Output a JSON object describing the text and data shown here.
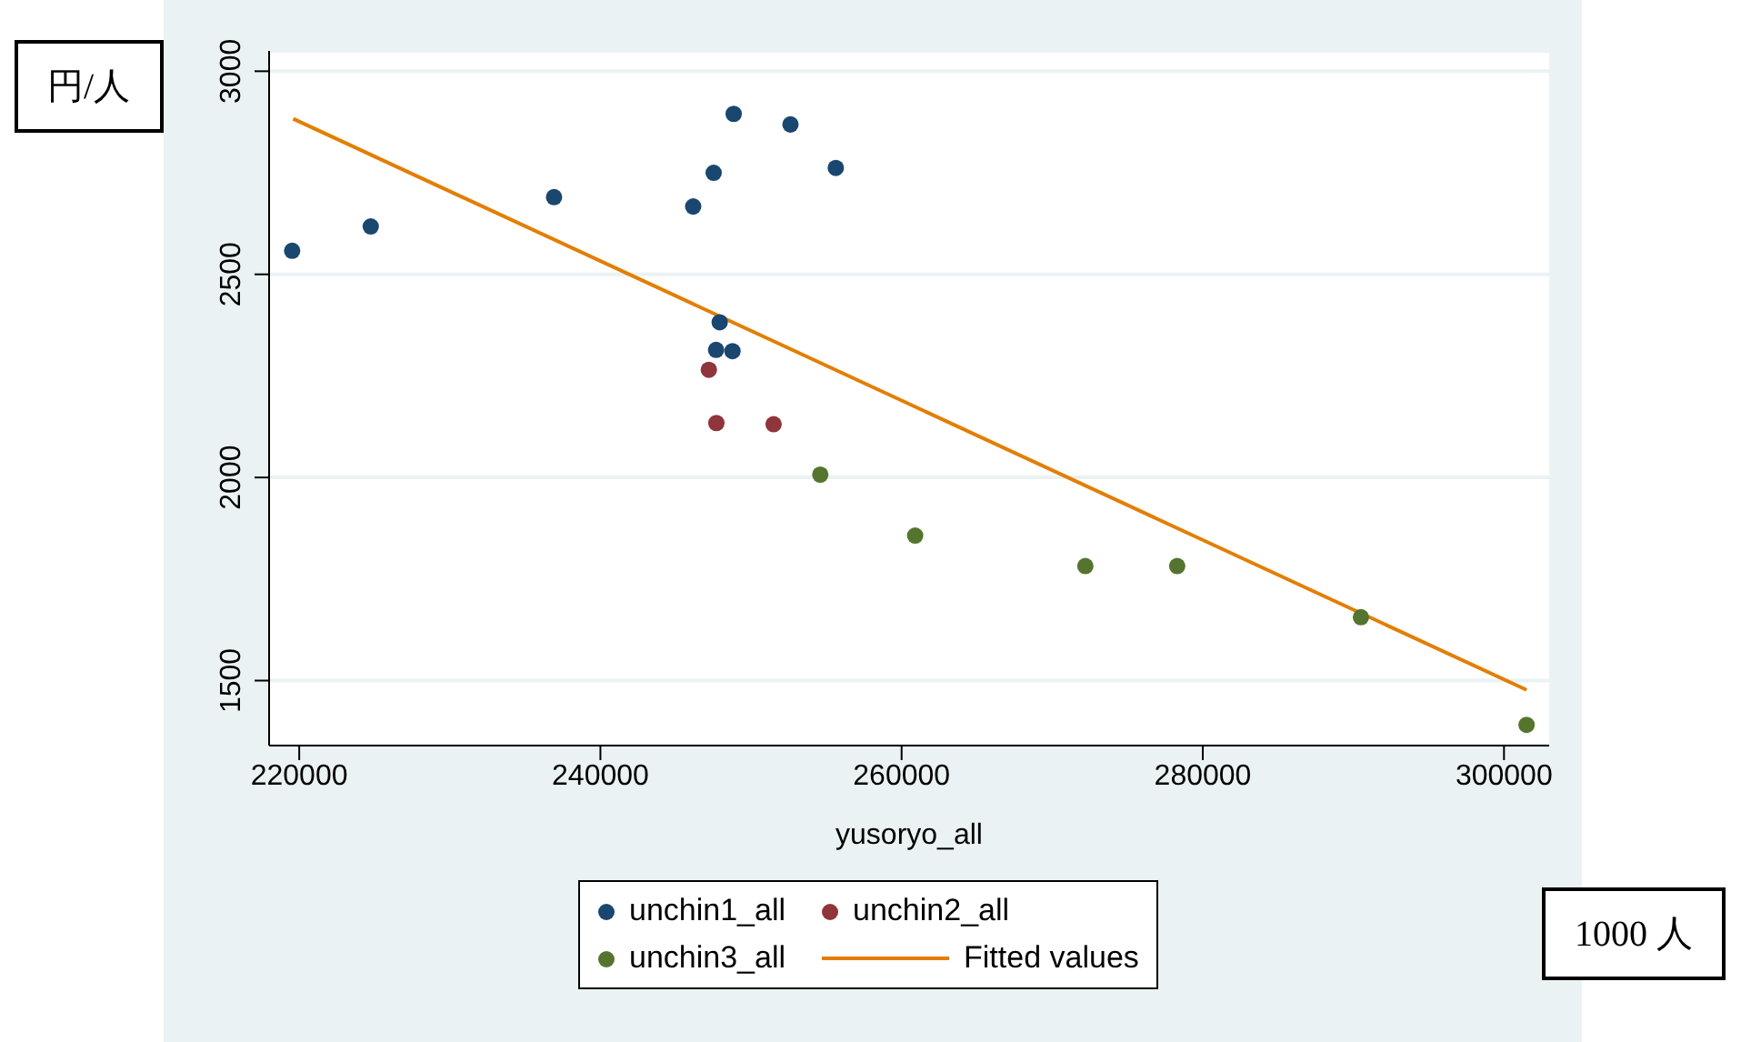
{
  "chart_data": {
    "type": "scatter",
    "xlabel": "yusoryo_all",
    "annotations": [
      "円/人",
      "1000 人"
    ],
    "xlim": [
      218000,
      303000
    ],
    "xticks": [
      220000,
      240000,
      260000,
      280000,
      300000
    ],
    "ylim": [
      1340,
      3050
    ],
    "yticks": [
      1500,
      2000,
      2500,
      3000
    ],
    "grid": "y",
    "legend": "bottom",
    "series": [
      {
        "name": "unchin1_all",
        "color": "#1a476f",
        "marker": "circle",
        "x": [
          219530,
          224750,
          236920,
          246160,
          247520,
          248850,
          252620,
          255630,
          247920,
          247680,
          248770
        ],
        "values": [
          2558,
          2618,
          2690,
          2667,
          2750,
          2895,
          2869,
          2762,
          2382,
          2314,
          2311
        ]
      },
      {
        "name": "unchin2_all",
        "color": "#90353b",
        "marker": "circle",
        "x": [
          247200,
          247700,
          251500
        ],
        "values": [
          2265,
          2134,
          2131
        ]
      },
      {
        "name": "unchin3_all",
        "color": "#55752f",
        "marker": "circle",
        "x": [
          254600,
          260900,
          272200,
          278300,
          290500,
          301500
        ],
        "values": [
          2007,
          1857,
          1782,
          1782,
          1656,
          1391
        ]
      },
      {
        "name": "Fitted values",
        "type": "line",
        "color": "#e37e00",
        "x": [
          219600,
          301500
        ],
        "values": [
          2883,
          1477
        ]
      }
    ]
  }
}
